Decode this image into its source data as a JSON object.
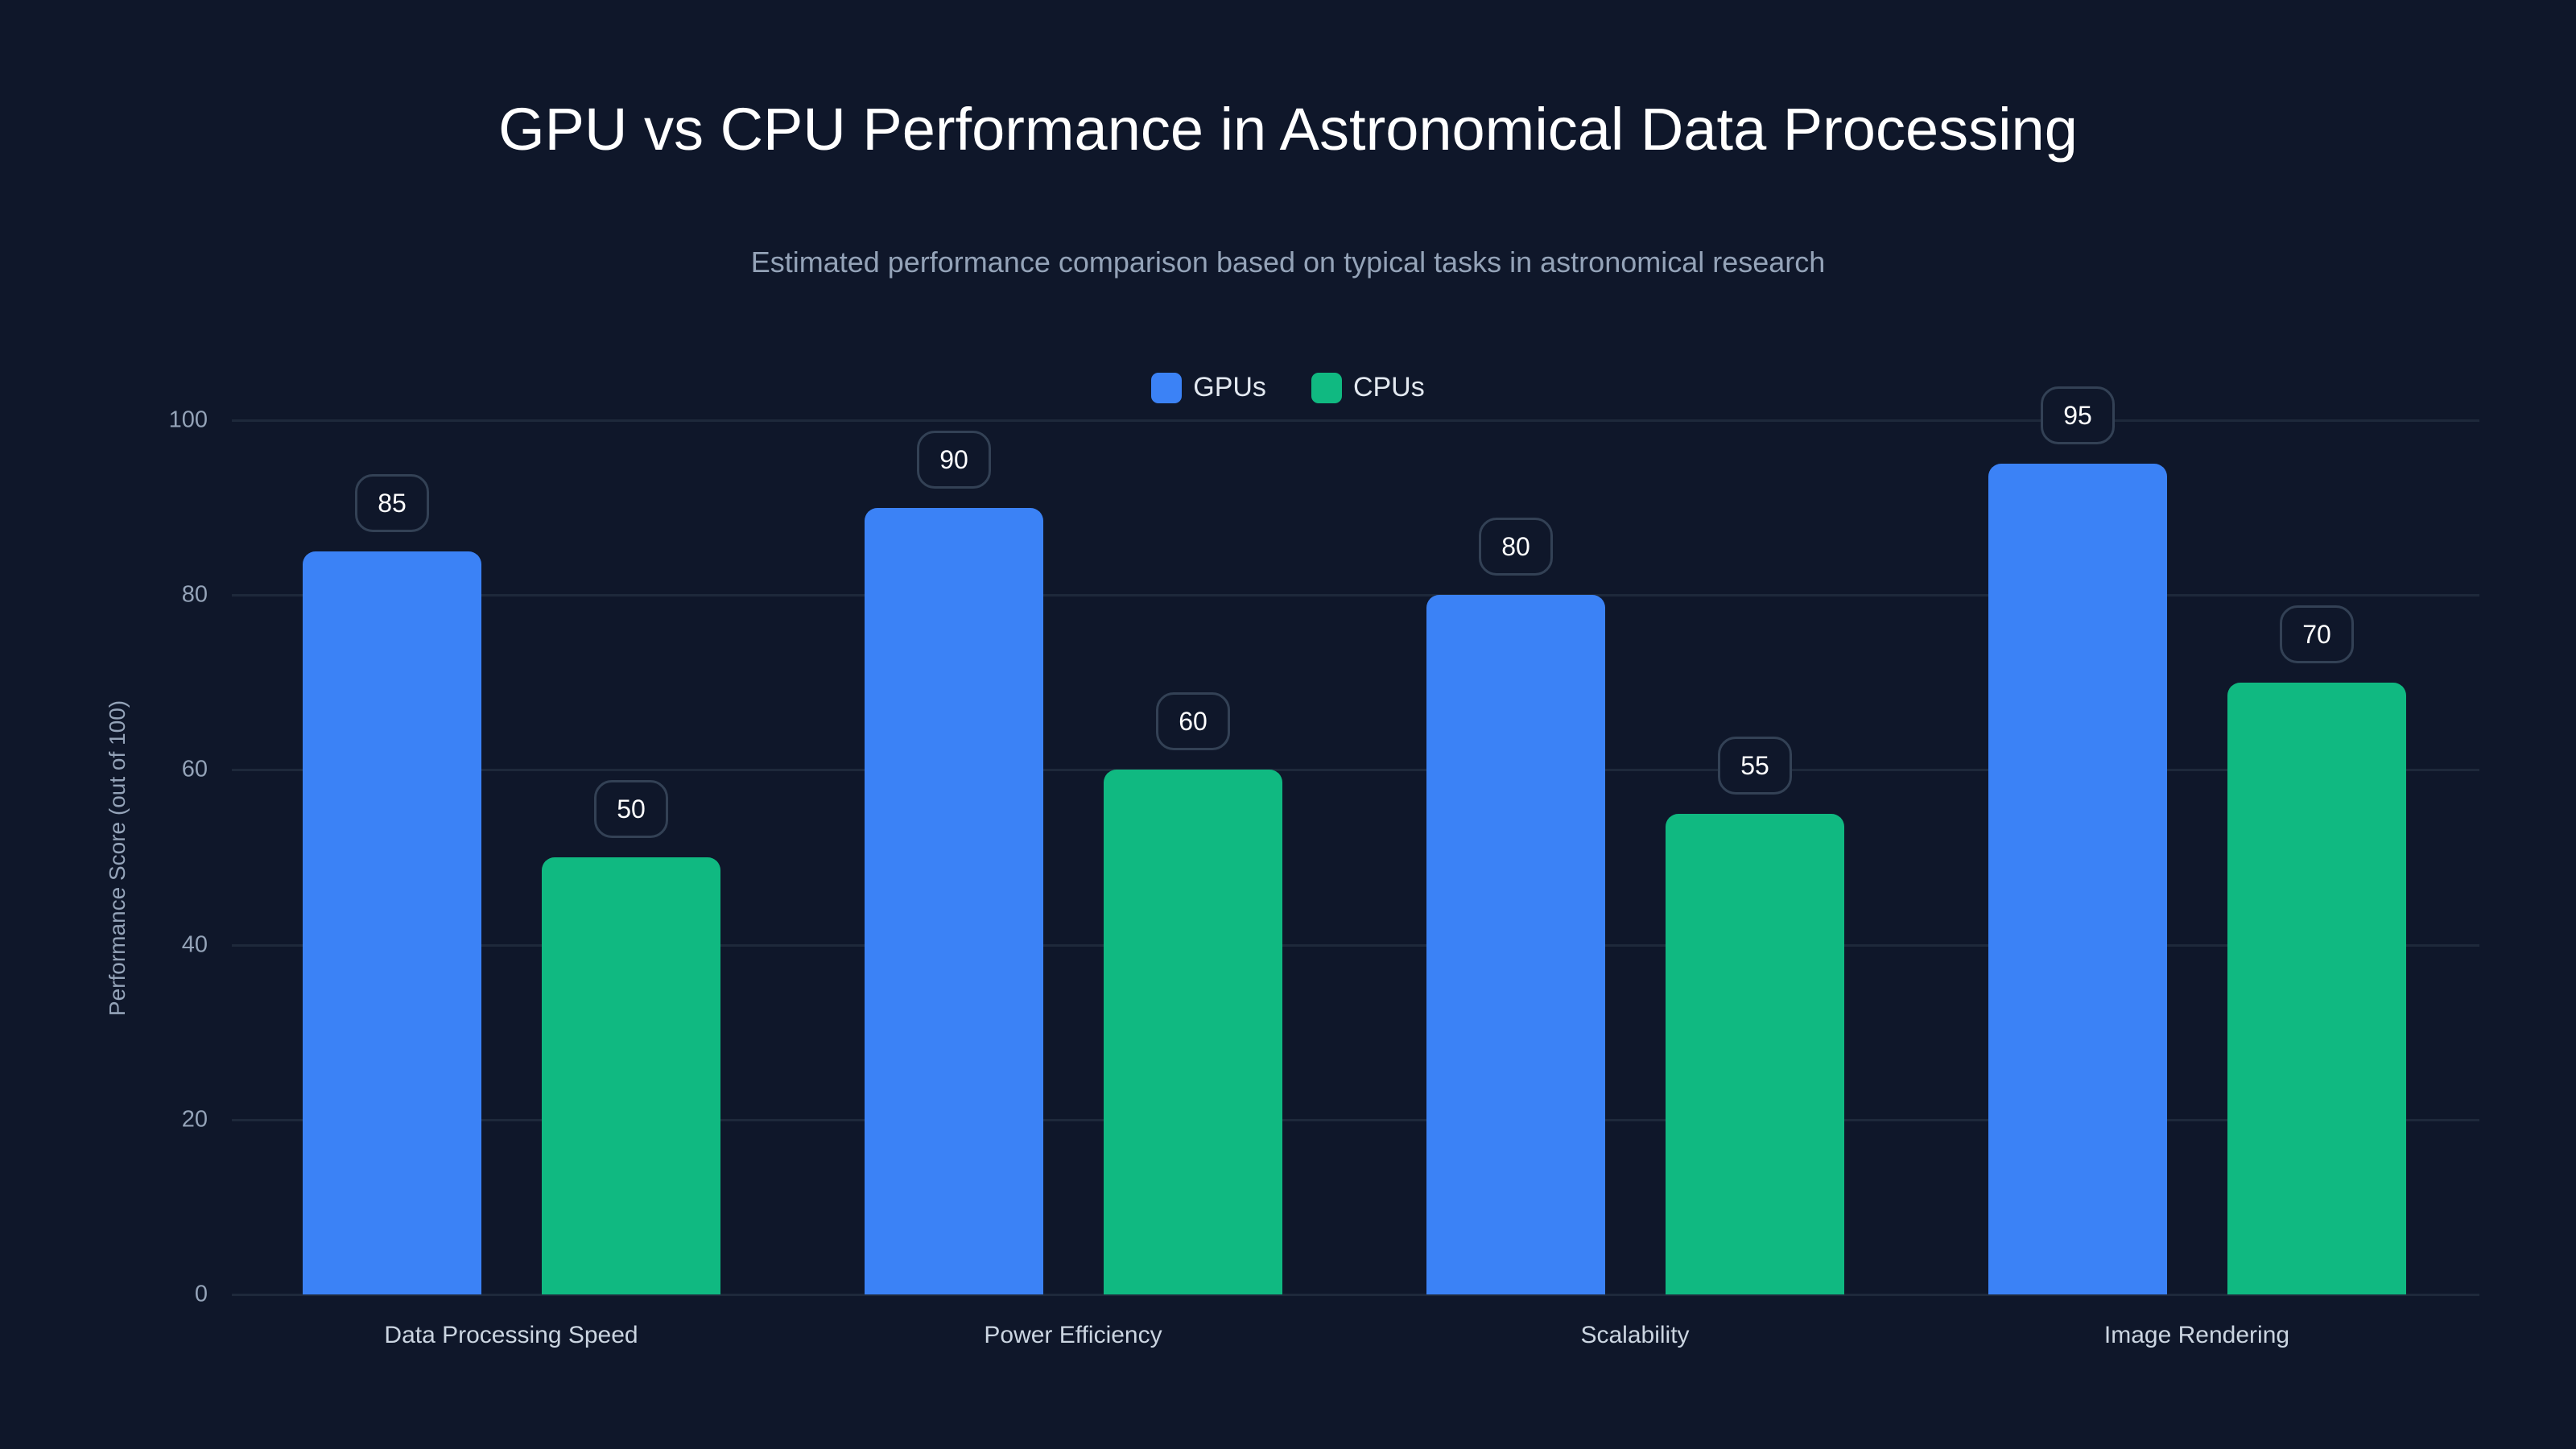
{
  "header": {
    "title": "GPU vs CPU Performance in Astronomical Data Processing",
    "subtitle": "Estimated performance comparison based on typical tasks in astronomical research"
  },
  "legend": [
    {
      "label": "GPUs",
      "color": "#3b82f6"
    },
    {
      "label": "CPUs",
      "color": "#10b981"
    }
  ],
  "axes": {
    "ylabel": "Performance Score (out of 100)",
    "yticks": [
      "0",
      "20",
      "40",
      "60",
      "80",
      "100"
    ]
  },
  "colors": {
    "background": "#0f172a",
    "gpu": "#3b82f6",
    "cpu": "#10b981",
    "grid": "#1e293b",
    "label_border": "#334155"
  },
  "chart_data": {
    "type": "bar",
    "title": "GPU vs CPU Performance in Astronomical Data Processing",
    "subtitle": "Estimated performance comparison based on typical tasks in astronomical research",
    "categories": [
      "Data Processing Speed",
      "Power Efficiency",
      "Scalability",
      "Image Rendering"
    ],
    "series": [
      {
        "name": "GPUs",
        "color": "#3b82f6",
        "values": [
          85,
          90,
          80,
          95
        ]
      },
      {
        "name": "CPUs",
        "color": "#10b981",
        "values": [
          50,
          60,
          55,
          70
        ]
      }
    ],
    "xlabel": "",
    "ylabel": "Performance Score (out of 100)",
    "ylim": [
      0,
      100
    ],
    "yticks": [
      0,
      20,
      40,
      60,
      80,
      100
    ],
    "grid": true,
    "legend_position": "top-center",
    "data_labels": true
  }
}
